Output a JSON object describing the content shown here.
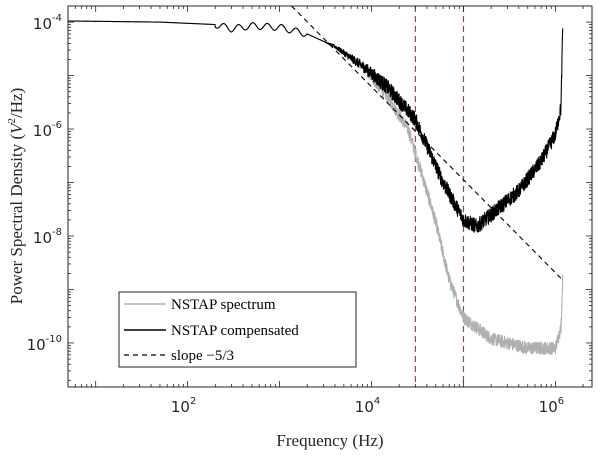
{
  "chart_data": {
    "type": "line",
    "xlabel": "Frequency (Hz)",
    "ylabel": "Power Spectral Density (V²/Hz)",
    "ylabel_parts": {
      "before": "Power Spectral Density (",
      "base": "V",
      "sup": "2",
      "after": "/Hz)"
    },
    "xscale": "log",
    "yscale": "log",
    "xlim": [
      5,
      2500000
    ],
    "ylim": [
      1.5e-11,
      0.0002
    ],
    "grid": false,
    "legend_position": "bottom-left",
    "x_ticks": [
      {
        "value": 100,
        "base": "10",
        "exp": "2"
      },
      {
        "value": 10000,
        "base": "10",
        "exp": "4"
      },
      {
        "value": 1000000,
        "base": "10",
        "exp": "6"
      }
    ],
    "y_ticks": [
      {
        "value": 0.0001,
        "base": "10",
        "exp": "-4"
      },
      {
        "value": 1e-06,
        "base": "10",
        "exp": "-6"
      },
      {
        "value": 1e-08,
        "base": "10",
        "exp": "-8"
      },
      {
        "value": 1e-10,
        "base": "10",
        "exp": "-10"
      }
    ],
    "vlines": {
      "color": "#e8262b",
      "x": [
        30000,
        100000
      ]
    },
    "series": [
      {
        "name": "NSTAP spectrum",
        "color": "#b0b0b0",
        "noise_decades": 0.12,
        "noise_start": 3000,
        "x": [
          5,
          50,
          200,
          300,
          500,
          1000,
          2000,
          4000,
          8000,
          15000,
          25000,
          35000,
          50000,
          70000,
          100000,
          200000,
          500000,
          1000000,
          1150000,
          1200000
        ],
        "y": [
          0.000105,
          0.0001,
          9e-05,
          7.5e-05,
          8.5e-05,
          8e-05,
          6e-05,
          3.5e-05,
          1.5e-05,
          4e-06,
          1e-06,
          1.5e-07,
          1.8e-08,
          1.5e-09,
          3e-10,
          1.2e-10,
          8e-11,
          8e-11,
          2e-10,
          1.5e-09
        ]
      },
      {
        "name": "NSTAP compensated",
        "color": "#000000",
        "noise_decades": 0.14,
        "noise_start": 3000,
        "x": [
          5,
          50,
          200,
          300,
          500,
          1000,
          2000,
          4000,
          8000,
          15000,
          30000,
          60000,
          100000,
          140000,
          200000,
          400000,
          700000,
          1000000,
          1150000,
          1200000
        ],
        "y": [
          0.000105,
          0.0001,
          9e-05,
          7.5e-05,
          8.5e-05,
          8e-05,
          6e-05,
          3.5e-05,
          1.5e-05,
          6e-06,
          1.5e-06,
          1e-07,
          2e-08,
          1.5e-08,
          2.5e-08,
          7e-08,
          2.5e-07,
          8e-07,
          2.5e-06,
          8e-05
        ]
      },
      {
        "name": "slope −5/3",
        "color": "#000000",
        "dashed": true,
        "x": [
          1350,
          1200000
        ],
        "y": [
          0.0002,
          1.5e-09
        ]
      }
    ]
  }
}
